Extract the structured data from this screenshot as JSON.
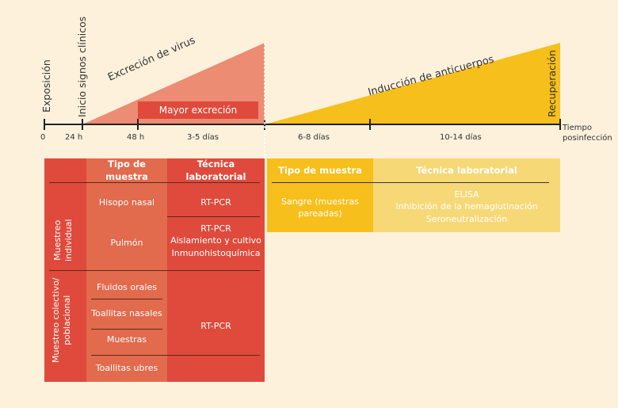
{
  "colors": {
    "background": "#fdf1dc",
    "red_dark": "#df4a3c",
    "red_mid": "#e26a4d",
    "salmon": "#ec8c72",
    "yellow": "#f7bf1b",
    "yellow_light": "#f6d877"
  },
  "timeline": {
    "events": [
      "Exposición",
      "Inicio signos clínicos",
      "Recuperación"
    ],
    "ticks": [
      "0",
      "24 h",
      "48 h",
      "3-5 días",
      "6-8 días",
      "10-14 días"
    ],
    "axis_label": [
      "Tiempo",
      "posinfección"
    ],
    "virus_excretion": "Excreción de virus",
    "peak_excretion": "Mayor excreción",
    "antibody_induction": "Inducción de anticuerpos"
  },
  "virus_table": {
    "headers": [
      "Tipo de muestra",
      "Técnica laboratorial"
    ],
    "individual": {
      "label": [
        "Muestreo",
        "individual"
      ],
      "rows": [
        {
          "sample": "Hisopo nasal",
          "technique": [
            "RT-PCR"
          ]
        },
        {
          "sample": "Pulmón",
          "technique": [
            "RT-PCR",
            "Aislamiento y cultivo",
            "Inmunohistoquímica"
          ]
        }
      ]
    },
    "collective": {
      "label": [
        "Muestreo colectivo/",
        "poblacional"
      ],
      "samples": [
        "Fluidos orales",
        "Toallitas nasales",
        "Muestras",
        "Toallitas ubres"
      ],
      "technique": "RT-PCR"
    }
  },
  "antibody_table": {
    "headers": [
      "Tipo de muestra",
      "Técnica laboratorial"
    ],
    "sample": [
      "Sangre (muestras",
      "pareadas)"
    ],
    "techniques": [
      "ELISA",
      "Inhibición de la hemaglutinación",
      "Seroneutralización"
    ]
  }
}
